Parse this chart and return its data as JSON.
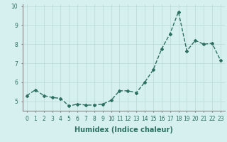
{
  "x": [
    0,
    1,
    2,
    3,
    4,
    5,
    6,
    7,
    8,
    9,
    10,
    11,
    12,
    13,
    14,
    15,
    16,
    17,
    18,
    19,
    20,
    21,
    22,
    23
  ],
  "y": [
    5.3,
    5.6,
    5.3,
    5.2,
    5.15,
    4.75,
    4.85,
    4.8,
    4.8,
    4.85,
    5.05,
    5.55,
    5.55,
    5.45,
    6.0,
    6.65,
    7.75,
    8.55,
    9.7,
    7.65,
    8.2,
    8.0,
    8.05,
    7.15
  ],
  "line_color": "#2d7060",
  "marker": "D",
  "marker_size": 2,
  "bg_color": "#d6f0ef",
  "grid_color": "#b8d8d5",
  "xlabel": "Humidex (Indice chaleur)",
  "xlabel_fontsize": 7,
  "tick_fontsize": 5.5,
  "ylim": [
    4.5,
    10.1
  ],
  "xlim": [
    -0.5,
    23.5
  ],
  "yticks": [
    5,
    6,
    7,
    8,
    9,
    10
  ],
  "xticks": [
    0,
    1,
    2,
    3,
    4,
    5,
    6,
    7,
    8,
    9,
    10,
    11,
    12,
    13,
    14,
    15,
    16,
    17,
    18,
    19,
    20,
    21,
    22,
    23
  ],
  "linewidth": 1.0
}
